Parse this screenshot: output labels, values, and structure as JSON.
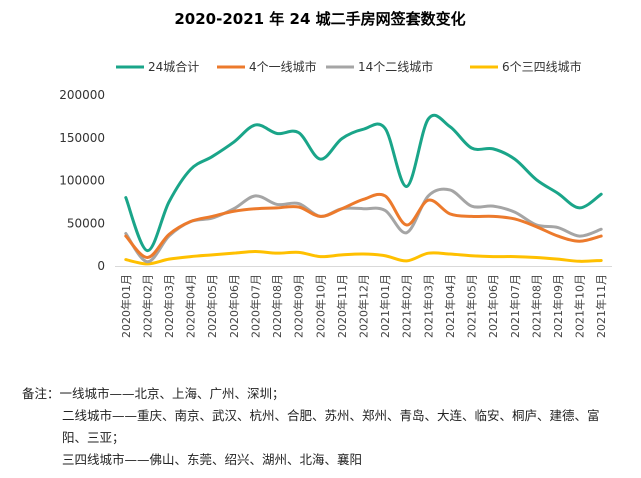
{
  "chart_data": {
    "type": "line",
    "title": "2020-2021 年 24 城二手房网签套数变化",
    "x": [
      "2020年01月",
      "2020年02月",
      "2020年03月",
      "2020年04月",
      "2020年05月",
      "2020年06月",
      "2020年07月",
      "2020年08月",
      "2020年09月",
      "2020年10月",
      "2020年11月",
      "2020年12月",
      "2021年01月",
      "2021年02月",
      "2021年03月",
      "2021年04月",
      "2021年05月",
      "2021年06月",
      "2021年07月",
      "2021年08月",
      "2021年09月",
      "2021年10月",
      "2021年11月"
    ],
    "ylim": [
      0,
      200000
    ],
    "yticks": [
      "0",
      "50000",
      "100000",
      "150000",
      "200000"
    ],
    "legend_position": "top",
    "grid": false,
    "series": [
      {
        "name": "24城合计",
        "color": "#1aa589",
        "values": [
          80000,
          18000,
          75000,
          113000,
          128000,
          145000,
          165000,
          155000,
          156000,
          125000,
          149000,
          160000,
          161000,
          93000,
          172000,
          163000,
          138000,
          137000,
          125000,
          101000,
          85000,
          68000,
          84000
        ]
      },
      {
        "name": "4个一线城市",
        "color": "#ec7a2c",
        "values": [
          35000,
          10000,
          37000,
          52000,
          58000,
          64000,
          67000,
          68000,
          69000,
          58000,
          67000,
          78000,
          82000,
          48000,
          77000,
          61000,
          58000,
          58000,
          55000,
          46000,
          35000,
          29000,
          35000
        ]
      },
      {
        "name": "14个二线城市",
        "color": "#a5a5a5",
        "values": [
          38000,
          5000,
          35000,
          52000,
          56000,
          67000,
          82000,
          72000,
          73000,
          58000,
          67000,
          67000,
          65000,
          39000,
          82000,
          89000,
          70000,
          70000,
          63000,
          48000,
          45000,
          35000,
          43000
        ]
      },
      {
        "name": "6个三四线城市",
        "color": "#ffc000",
        "values": [
          7500,
          2500,
          8000,
          11000,
          13000,
          15000,
          17000,
          15000,
          16000,
          11000,
          13000,
          14000,
          12000,
          6000,
          15000,
          14000,
          12000,
          11000,
          11000,
          10000,
          8000,
          5500,
          6500
        ]
      }
    ]
  },
  "notes": {
    "line1": "备注：一线城市——北京、上海、广州、深圳；",
    "line2": "二线城市——重庆、南京、武汉、杭州、合肥、苏州、郑州、青岛、大连、临安、桐庐、建德、富",
    "line3": "阳、三亚；",
    "line4": "三四线城市——佛山、东莞、绍兴、湖州、北海、襄阳"
  }
}
